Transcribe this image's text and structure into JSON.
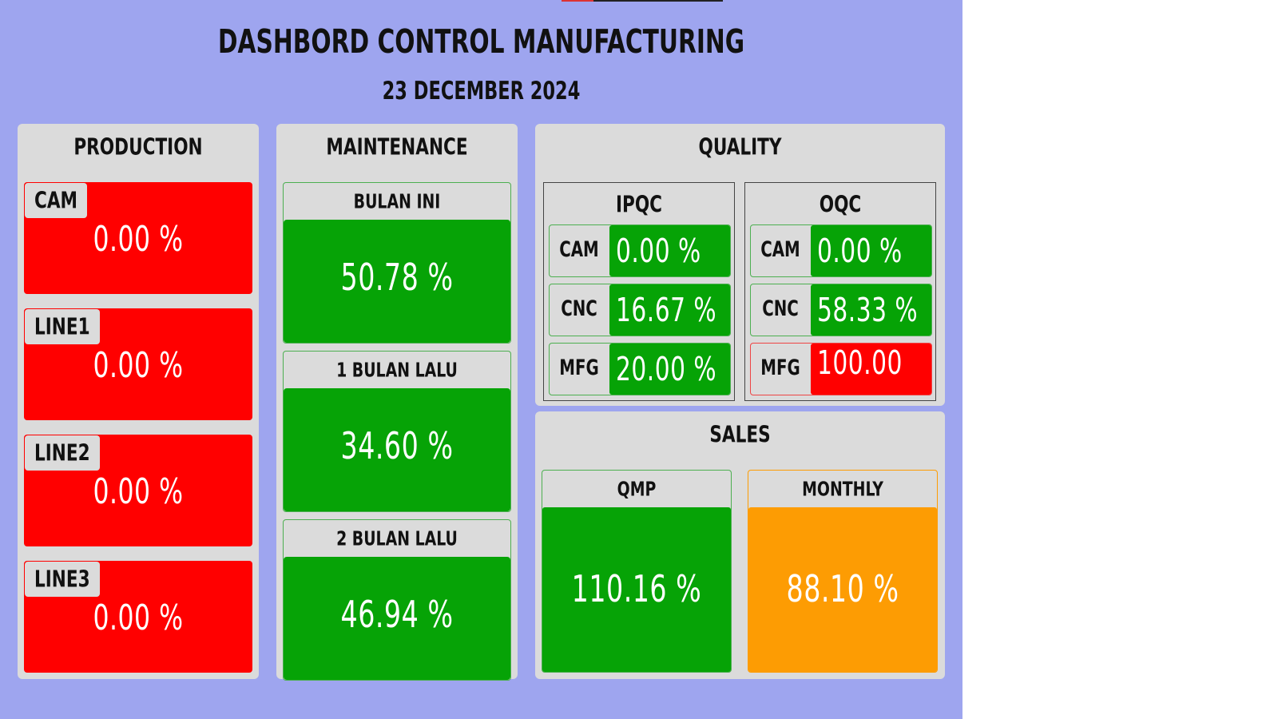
{
  "header": {
    "title": "DASHBORD CONTROL MANUFACTURING",
    "date": "23 DECEMBER 2024"
  },
  "colors": {
    "background": "#9ea5ef",
    "panel": "#dbdbdb",
    "bad": "#ff0000",
    "good": "#06a306",
    "warning": "#fd9c03"
  },
  "production": {
    "title": "PRODUCTION",
    "items": [
      {
        "label": "CAM",
        "value": "0.00 %"
      },
      {
        "label": "LINE1",
        "value": "0.00 %"
      },
      {
        "label": "LINE2",
        "value": "0.00 %"
      },
      {
        "label": "LINE3",
        "value": "0.00 %"
      }
    ]
  },
  "maintenance": {
    "title": "MAINTENANCE",
    "items": [
      {
        "label": "BULAN INI",
        "value": "50.78 %"
      },
      {
        "label": "1 BULAN LALU",
        "value": "34.60 %"
      },
      {
        "label": "2 BULAN LALU",
        "value": "46.94 %"
      }
    ]
  },
  "quality": {
    "title": "QUALITY",
    "ipqc": {
      "title": "IPQC",
      "rows": [
        {
          "label": "CAM",
          "value": "0.00 %"
        },
        {
          "label": "CNC",
          "value": "16.67 %"
        },
        {
          "label": "MFG",
          "value": "20.00 %"
        }
      ]
    },
    "oqc": {
      "title": "OQC",
      "rows": [
        {
          "label": "CAM",
          "value": "0.00 %"
        },
        {
          "label": "CNC",
          "value": "58.33 %"
        },
        {
          "label": "MFG",
          "value": "100.00 %"
        }
      ]
    }
  },
  "sales": {
    "title": "SALES",
    "items": [
      {
        "label": "QMP",
        "value": "110.16 %"
      },
      {
        "label": "MONTHLY",
        "value": "88.10 %"
      }
    ]
  }
}
